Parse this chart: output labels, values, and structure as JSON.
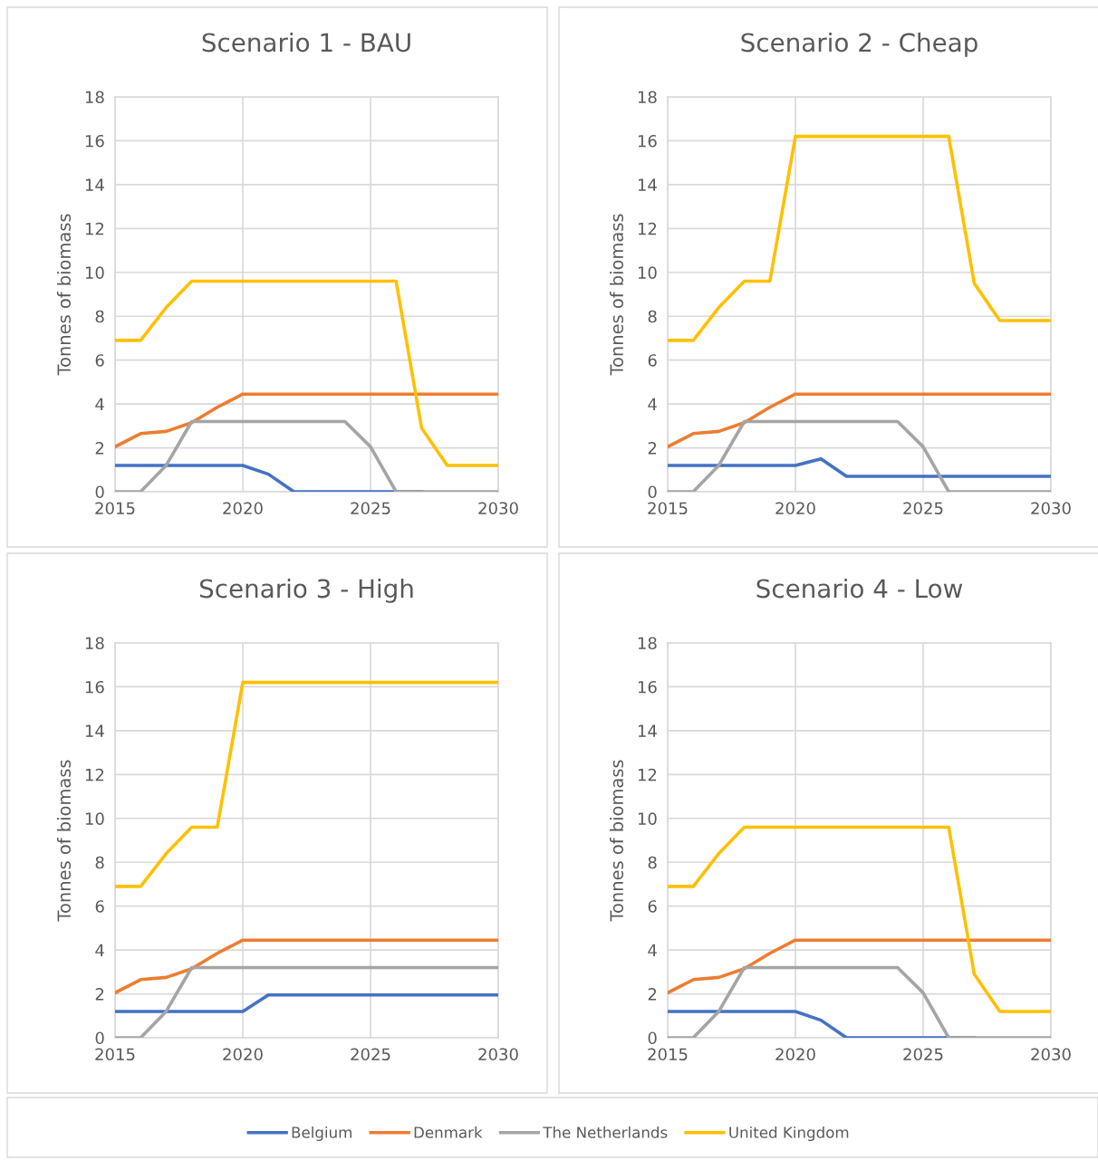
{
  "chart_data": [
    {
      "type": "line",
      "title": "Scenario 1 - BAU",
      "ylabel": "Tonnes of biomass",
      "x": [
        2015,
        2016,
        2017,
        2018,
        2019,
        2020,
        2021,
        2022,
        2023,
        2024,
        2025,
        2026,
        2027,
        2028,
        2029,
        2030
      ],
      "xlim": [
        2015,
        2030
      ],
      "xticks": [
        2015,
        2020,
        2025,
        2030
      ],
      "ylim": [
        0,
        18
      ],
      "yticks": [
        0,
        2,
        4,
        6,
        8,
        10,
        12,
        14,
        16,
        18
      ],
      "grid": true,
      "marker": "none",
      "line_style": "solid",
      "legend": "bottom",
      "series": [
        {
          "name": "Belgium",
          "color": "#4472c4",
          "values": [
            1.2,
            1.2,
            1.2,
            1.2,
            1.2,
            1.2,
            0.8,
            0,
            0,
            0,
            0,
            0,
            0,
            null,
            null,
            null
          ]
        },
        {
          "name": "Denmark",
          "color": "#ed7d31",
          "values": [
            2.05,
            2.65,
            2.75,
            3.15,
            3.85,
            4.45,
            4.45,
            4.45,
            4.45,
            4.45,
            4.45,
            4.45,
            4.45,
            4.45,
            4.45,
            4.45
          ]
        },
        {
          "name": "The Netherlands",
          "color": "#a5a5a5",
          "values": [
            0,
            0,
            1.2,
            3.2,
            3.2,
            3.2,
            3.2,
            3.2,
            3.2,
            3.2,
            2.05,
            0,
            0,
            0,
            0,
            0
          ]
        },
        {
          "name": "United Kingdom",
          "color": "#ffc000",
          "values": [
            6.9,
            6.9,
            8.4,
            9.6,
            9.6,
            9.6,
            9.6,
            9.6,
            9.6,
            9.6,
            9.6,
            9.6,
            2.9,
            1.2,
            1.2,
            1.2
          ]
        }
      ]
    },
    {
      "type": "line",
      "title": "Scenario 2 - Cheap",
      "ylabel": "Tonnes of biomass",
      "x": [
        2015,
        2016,
        2017,
        2018,
        2019,
        2020,
        2021,
        2022,
        2023,
        2024,
        2025,
        2026,
        2027,
        2028,
        2029,
        2030
      ],
      "xlim": [
        2015,
        2030
      ],
      "xticks": [
        2015,
        2020,
        2025,
        2030
      ],
      "ylim": [
        0,
        18
      ],
      "yticks": [
        0,
        2,
        4,
        6,
        8,
        10,
        12,
        14,
        16,
        18
      ],
      "grid": true,
      "marker": "none",
      "line_style": "solid",
      "legend": "bottom",
      "series": [
        {
          "name": "Belgium",
          "color": "#4472c4",
          "values": [
            1.2,
            1.2,
            1.2,
            1.2,
            1.2,
            1.2,
            1.5,
            0.7,
            0.7,
            0.7,
            0.7,
            0.7,
            0.7,
            0.7,
            0.7,
            0.7
          ]
        },
        {
          "name": "Denmark",
          "color": "#ed7d31",
          "values": [
            2.05,
            2.65,
            2.75,
            3.15,
            3.85,
            4.45,
            4.45,
            4.45,
            4.45,
            4.45,
            4.45,
            4.45,
            4.45,
            4.45,
            4.45,
            4.45
          ]
        },
        {
          "name": "The Netherlands",
          "color": "#a5a5a5",
          "values": [
            0,
            0,
            1.2,
            3.2,
            3.2,
            3.2,
            3.2,
            3.2,
            3.2,
            3.2,
            2.05,
            0,
            0,
            0,
            0,
            0
          ]
        },
        {
          "name": "United Kingdom",
          "color": "#ffc000",
          "values": [
            6.9,
            6.9,
            8.4,
            9.6,
            9.6,
            16.2,
            16.2,
            16.2,
            16.2,
            16.2,
            16.2,
            16.2,
            9.5,
            7.8,
            7.8,
            7.8
          ]
        }
      ]
    },
    {
      "type": "line",
      "title": "Scenario 3 - High",
      "ylabel": "Tonnes of biomass",
      "x": [
        2015,
        2016,
        2017,
        2018,
        2019,
        2020,
        2021,
        2022,
        2023,
        2024,
        2025,
        2026,
        2027,
        2028,
        2029,
        2030
      ],
      "xlim": [
        2015,
        2030
      ],
      "xticks": [
        2015,
        2020,
        2025,
        2030
      ],
      "ylim": [
        0,
        18
      ],
      "yticks": [
        0,
        2,
        4,
        6,
        8,
        10,
        12,
        14,
        16,
        18
      ],
      "grid": true,
      "marker": "none",
      "line_style": "solid",
      "legend": "bottom",
      "series": [
        {
          "name": "Belgium",
          "color": "#4472c4",
          "values": [
            1.2,
            1.2,
            1.2,
            1.2,
            1.2,
            1.2,
            1.95,
            1.95,
            1.95,
            1.95,
            1.95,
            1.95,
            1.95,
            1.95,
            1.95,
            1.95
          ]
        },
        {
          "name": "Denmark",
          "color": "#ed7d31",
          "values": [
            2.05,
            2.65,
            2.75,
            3.15,
            3.85,
            4.45,
            4.45,
            4.45,
            4.45,
            4.45,
            4.45,
            4.45,
            4.45,
            4.45,
            4.45,
            4.45
          ]
        },
        {
          "name": "The Netherlands",
          "color": "#a5a5a5",
          "values": [
            0,
            0,
            1.2,
            3.2,
            3.2,
            3.2,
            3.2,
            3.2,
            3.2,
            3.2,
            3.2,
            3.2,
            3.2,
            3.2,
            3.2,
            3.2
          ]
        },
        {
          "name": "United Kingdom",
          "color": "#ffc000",
          "values": [
            6.9,
            6.9,
            8.4,
            9.6,
            9.6,
            16.2,
            16.2,
            16.2,
            16.2,
            16.2,
            16.2,
            16.2,
            16.2,
            16.2,
            16.2,
            16.2
          ]
        }
      ]
    },
    {
      "type": "line",
      "title": "Scenario 4 - Low",
      "ylabel": "Tonnes of biomass",
      "x": [
        2015,
        2016,
        2017,
        2018,
        2019,
        2020,
        2021,
        2022,
        2023,
        2024,
        2025,
        2026,
        2027,
        2028,
        2029,
        2030
      ],
      "xlim": [
        2015,
        2030
      ],
      "xticks": [
        2015,
        2020,
        2025,
        2030
      ],
      "ylim": [
        0,
        18
      ],
      "yticks": [
        0,
        2,
        4,
        6,
        8,
        10,
        12,
        14,
        16,
        18
      ],
      "grid": true,
      "marker": "none",
      "line_style": "solid",
      "legend": "bottom",
      "series": [
        {
          "name": "Belgium",
          "color": "#4472c4",
          "values": [
            1.2,
            1.2,
            1.2,
            1.2,
            1.2,
            1.2,
            0.8,
            0,
            0,
            0,
            0,
            0,
            0,
            null,
            null,
            null
          ]
        },
        {
          "name": "Denmark",
          "color": "#ed7d31",
          "values": [
            2.05,
            2.65,
            2.75,
            3.15,
            3.85,
            4.45,
            4.45,
            4.45,
            4.45,
            4.45,
            4.45,
            4.45,
            4.45,
            4.45,
            4.45,
            4.45
          ]
        },
        {
          "name": "The Netherlands",
          "color": "#a5a5a5",
          "values": [
            0,
            0,
            1.2,
            3.2,
            3.2,
            3.2,
            3.2,
            3.2,
            3.2,
            3.2,
            2.05,
            0,
            0,
            0,
            0,
            0
          ]
        },
        {
          "name": "United Kingdom",
          "color": "#ffc000",
          "values": [
            6.9,
            6.9,
            8.4,
            9.6,
            9.6,
            9.6,
            9.6,
            9.6,
            9.6,
            9.6,
            9.6,
            9.6,
            2.9,
            1.2,
            1.2,
            1.2
          ]
        }
      ]
    }
  ]
}
